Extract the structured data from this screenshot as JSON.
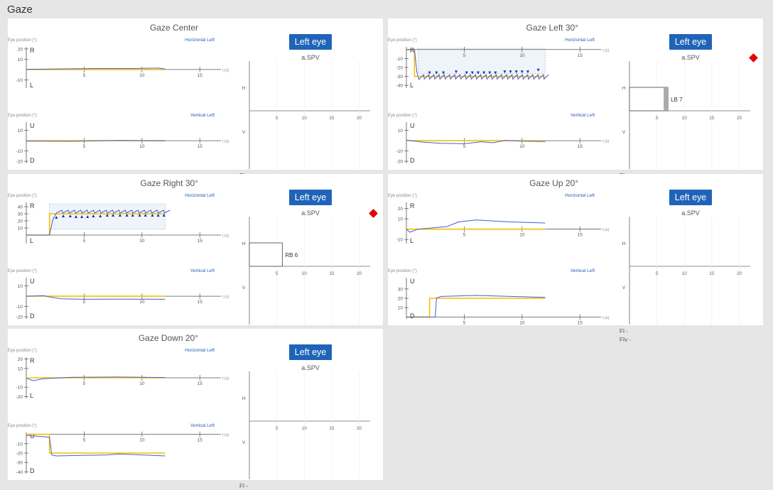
{
  "page": {
    "title": "Gaze"
  },
  "common": {
    "eye_position_label": "Eye position (°)",
    "horizontal_label": "Horizontal Left",
    "vertical_label": "Vertical Left",
    "time_unit": "t (s)",
    "eye_button_label": "Left eye",
    "spv_label": "a.SPV",
    "fi_label": "FI -",
    "fiv_label": "FIv -",
    "h_axis_label": "H",
    "v_axis_label": "V",
    "r_label": "R",
    "l_label": "L",
    "u_label": "U",
    "d_label": "D"
  },
  "colors": {
    "target": "#f2c200",
    "eye": "#4a5bd0",
    "beat_marker": "#1a2fa8",
    "eye_button": "#1f64b8",
    "warning": "#e60000",
    "analysis_window": "#eef4fa"
  },
  "chart_data": [
    {
      "type": "line",
      "title": "Gaze Center",
      "x_ticks": [
        5,
        10,
        15
      ],
      "horizontal": {
        "ylim": [
          -18,
          22
        ],
        "y_ticks": [
          20,
          10,
          -10
        ],
        "series": [
          {
            "role": "target",
            "points": [
              [
                0,
                0
              ],
              [
                12,
                0
              ]
            ]
          },
          {
            "role": "eye",
            "points": [
              [
                0,
                0.2
              ],
              [
                3,
                0.6
              ],
              [
                6,
                1.0
              ],
              [
                9,
                1.0
              ],
              [
                11.5,
                1.4
              ],
              [
                12,
                0.4
              ]
            ]
          }
        ]
      },
      "vertical": {
        "ylim": [
          -22,
          18
        ],
        "y_ticks": [
          10,
          -10,
          -20
        ],
        "series": [
          {
            "role": "target",
            "points": [
              [
                0,
                0
              ],
              [
                12,
                0
              ]
            ]
          },
          {
            "role": "eye",
            "points": [
              [
                0,
                -0.4
              ],
              [
                4,
                -0.6
              ],
              [
                8,
                0.2
              ],
              [
                12,
                -0.2
              ]
            ]
          }
        ]
      },
      "spv": {
        "xlim": [
          0,
          22
        ],
        "x_ticks": [
          5,
          10,
          15,
          20
        ],
        "bars": []
      },
      "warning": false
    },
    {
      "type": "line",
      "title": "Gaze Left 30°",
      "x_ticks": [
        5,
        10,
        15
      ],
      "horizontal": {
        "ylim": [
          -43,
          3
        ],
        "y_ticks": [
          -10,
          -20,
          -30,
          -40
        ],
        "series": [
          {
            "role": "target",
            "points": [
              [
                0,
                0
              ],
              [
                0.7,
                0
              ],
              [
                0.7,
                -30
              ],
              [
                12,
                -30
              ]
            ]
          },
          {
            "role": "eye",
            "points": [
              [
                0,
                0
              ],
              [
                0.7,
                0
              ],
              [
                0.9,
                -25
              ],
              [
                1.1,
                -34
              ],
              [
                12,
                -30
              ]
            ],
            "sawtooth": {
              "from": 1.1,
              "to": 12,
              "period": 0.45,
              "low": -33,
              "high": -28
            }
          }
        ],
        "analysis_window": [
          1.0,
          12.0
        ],
        "beat_markers": [
          {
            "t": 2.0,
            "y": -26
          },
          {
            "t": 2.6,
            "y": -26
          },
          {
            "t": 3.2,
            "y": -26
          },
          {
            "t": 4.3,
            "y": -25
          },
          {
            "t": 5.2,
            "y": -26
          },
          {
            "t": 5.7,
            "y": -26
          },
          {
            "t": 6.2,
            "y": -26
          },
          {
            "t": 6.7,
            "y": -26
          },
          {
            "t": 7.2,
            "y": -26
          },
          {
            "t": 7.7,
            "y": -26
          },
          {
            "t": 8.5,
            "y": -25
          },
          {
            "t": 9.0,
            "y": -25
          },
          {
            "t": 9.5,
            "y": -25
          },
          {
            "t": 10.0,
            "y": -25
          },
          {
            "t": 10.5,
            "y": -25
          },
          {
            "t": 11.4,
            "y": -23
          }
        ]
      },
      "vertical": {
        "ylim": [
          -22,
          18
        ],
        "y_ticks": [
          10,
          -10,
          -20
        ],
        "series": [
          {
            "role": "target",
            "points": [
              [
                0,
                0
              ],
              [
                12,
                0
              ]
            ]
          },
          {
            "role": "eye",
            "points": [
              [
                0,
                0.5
              ],
              [
                1.5,
                -1.5
              ],
              [
                3,
                -2.5
              ],
              [
                5,
                -3
              ],
              [
                6.5,
                -1
              ],
              [
                7.5,
                -2
              ],
              [
                8.5,
                0.2
              ],
              [
                10,
                -0.5
              ],
              [
                12,
                -0.8
              ]
            ]
          }
        ]
      },
      "spv": {
        "xlim": [
          0,
          22
        ],
        "x_ticks": [
          5,
          10,
          15,
          20
        ],
        "bars": [
          {
            "label": "LB 7",
            "value": 7,
            "side": "upper"
          }
        ]
      },
      "warning": true
    },
    {
      "type": "line",
      "title": "Gaze Right 30°",
      "x_ticks": [
        5,
        10,
        15
      ],
      "horizontal": {
        "ylim": [
          -12,
          46
        ],
        "y_ticks": [
          40,
          30,
          20,
          10
        ],
        "series": [
          {
            "role": "target",
            "points": [
              [
                0,
                0
              ],
              [
                2,
                0
              ],
              [
                2,
                30
              ],
              [
                12,
                30
              ]
            ]
          },
          {
            "role": "eye",
            "points": [
              [
                0,
                0
              ],
              [
                2,
                0
              ],
              [
                2.3,
                22
              ],
              [
                2.6,
                31
              ],
              [
                12,
                33
              ]
            ],
            "sawtooth": {
              "from": 2.6,
              "to": 12,
              "period": 0.55,
              "low": 31,
              "high": 35
            }
          }
        ],
        "analysis_window": [
          2.0,
          12.0
        ],
        "beat_markers": [
          {
            "t": 2.6,
            "y": 25
          },
          {
            "t": 3.2,
            "y": 27
          },
          {
            "t": 3.8,
            "y": 27
          },
          {
            "t": 4.3,
            "y": 26
          },
          {
            "t": 4.8,
            "y": 26
          },
          {
            "t": 5.3,
            "y": 26
          },
          {
            "t": 5.8,
            "y": 27
          },
          {
            "t": 6.4,
            "y": 27
          },
          {
            "t": 7.0,
            "y": 28
          },
          {
            "t": 7.5,
            "y": 28
          },
          {
            "t": 8.1,
            "y": 28
          },
          {
            "t": 8.7,
            "y": 28
          },
          {
            "t": 9.2,
            "y": 28
          },
          {
            "t": 9.8,
            "y": 28
          },
          {
            "t": 10.3,
            "y": 28
          },
          {
            "t": 10.9,
            "y": 28
          },
          {
            "t": 11.4,
            "y": 28
          },
          {
            "t": 11.9,
            "y": 28
          }
        ]
      },
      "vertical": {
        "ylim": [
          -22,
          18
        ],
        "y_ticks": [
          10,
          -10,
          -20
        ],
        "series": [
          {
            "role": "target",
            "points": [
              [
                0,
                0
              ],
              [
                12,
                0
              ]
            ]
          },
          {
            "role": "eye",
            "points": [
              [
                0,
                0
              ],
              [
                1.5,
                0.5
              ],
              [
                2.2,
                -1
              ],
              [
                3,
                -2.5
              ],
              [
                5,
                -3
              ],
              [
                8,
                -2.8
              ],
              [
                12,
                -3
              ]
            ]
          }
        ]
      },
      "spv": {
        "xlim": [
          0,
          22
        ],
        "x_ticks": [
          5,
          10,
          15,
          20
        ],
        "bars": [
          {
            "label": "RB 6",
            "value": 6,
            "side": "upper"
          }
        ]
      },
      "warning": true
    },
    {
      "type": "line",
      "title": "Gaze Up 20°",
      "x_ticks": [
        5,
        10,
        15
      ],
      "horizontal": {
        "ylim": [
          -14,
          26
        ],
        "y_ticks": [
          20,
          10,
          -10
        ],
        "series": [
          {
            "role": "target",
            "points": [
              [
                0,
                0
              ],
              [
                12,
                0
              ]
            ]
          },
          {
            "role": "eye",
            "points": [
              [
                0,
                0
              ],
              [
                0.3,
                -3
              ],
              [
                1,
                0
              ],
              [
                2.5,
                1.5
              ],
              [
                3.5,
                2.5
              ],
              [
                4.5,
                7
              ],
              [
                6,
                9
              ],
              [
                9,
                7
              ],
              [
                12,
                6
              ]
            ]
          }
        ]
      },
      "vertical": {
        "ylim": [
          -2,
          42
        ],
        "y_ticks": [
          30,
          20,
          10
        ],
        "series": [
          {
            "role": "target",
            "points": [
              [
                0,
                0
              ],
              [
                2,
                0
              ],
              [
                2,
                20
              ],
              [
                12,
                20
              ]
            ]
          },
          {
            "role": "eye",
            "points": [
              [
                0,
                0
              ],
              [
                2.5,
                0
              ],
              [
                2.6,
                20
              ],
              [
                3,
                22
              ],
              [
                6,
                23
              ],
              [
                9,
                22
              ],
              [
                12,
                21
              ]
            ]
          }
        ]
      },
      "spv": {
        "xlim": [
          0,
          22
        ],
        "x_ticks": [
          5,
          10,
          15,
          20
        ],
        "bars": []
      },
      "warning": false
    },
    {
      "type": "line",
      "title": "Gaze Down 20°",
      "x_ticks": [
        5,
        10,
        15
      ],
      "horizontal": {
        "ylim": [
          -22,
          22
        ],
        "y_ticks": [
          20,
          10,
          -10,
          -20
        ],
        "series": [
          {
            "role": "target",
            "points": [
              [
                0,
                0
              ],
              [
                12,
                0
              ]
            ]
          },
          {
            "role": "eye",
            "points": [
              [
                0,
                -0.5
              ],
              [
                0.6,
                -3
              ],
              [
                1.5,
                -1
              ],
              [
                4,
                0.5
              ],
              [
                8,
                0.8
              ],
              [
                12,
                0.3
              ]
            ]
          }
        ]
      },
      "vertical": {
        "ylim": [
          -42,
          2
        ],
        "y_ticks": [
          -10,
          -20,
          -30,
          -40
        ],
        "series": [
          {
            "role": "target",
            "points": [
              [
                0,
                0
              ],
              [
                2,
                0
              ],
              [
                2,
                -20
              ],
              [
                12,
                -20
              ]
            ]
          },
          {
            "role": "eye",
            "points": [
              [
                0,
                -1
              ],
              [
                2,
                -3
              ],
              [
                2.2,
                -22
              ],
              [
                2.6,
                -23
              ],
              [
                7,
                -22
              ],
              [
                8,
                -21
              ],
              [
                12,
                -23
              ]
            ]
          }
        ]
      },
      "spv": {
        "xlim": [
          0,
          22
        ],
        "x_ticks": [
          5,
          10,
          15,
          20
        ],
        "bars": []
      },
      "warning": false
    }
  ]
}
